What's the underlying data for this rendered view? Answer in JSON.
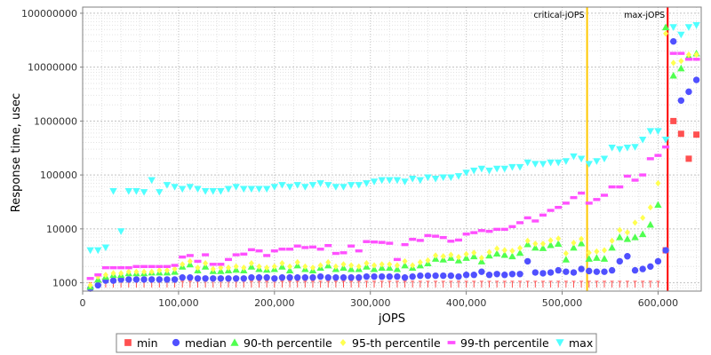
{
  "chart_data": {
    "type": "scatter",
    "title": "",
    "xlabel": "jOPS",
    "ylabel": "Response time, usec",
    "xlim": [
      0,
      645000
    ],
    "ylim": [
      700,
      130000000
    ],
    "yscale": "log",
    "grid": true,
    "legend_position": "bottom",
    "x_ticks": [
      0,
      100000,
      200000,
      300000,
      400000,
      500000,
      600000
    ],
    "x_tick_labels": [
      "0",
      "100,000",
      "200,000",
      "300,000",
      "400,000",
      "500,000",
      "600,000"
    ],
    "y_ticks": [
      1000,
      10000,
      100000,
      1000000,
      10000000,
      100000000
    ],
    "y_tick_labels": [
      "1000",
      "10000",
      "100000",
      "1000000",
      "10000000",
      "100000000"
    ],
    "markers": [
      {
        "name": "critical-jOPS",
        "x": 526000,
        "color": "#ffc800"
      },
      {
        "name": "max-jOPS",
        "x": 610000,
        "color": "#ff0000"
      }
    ],
    "x": [
      8000,
      16000,
      24000,
      32000,
      40000,
      48000,
      56000,
      64000,
      72000,
      80000,
      88000,
      96000,
      104000,
      112000,
      120000,
      128000,
      136000,
      144000,
      152000,
      160000,
      168000,
      176000,
      184000,
      192000,
      200000,
      208000,
      216000,
      224000,
      232000,
      240000,
      248000,
      256000,
      264000,
      272000,
      280000,
      288000,
      296000,
      304000,
      312000,
      320000,
      328000,
      336000,
      344000,
      352000,
      360000,
      368000,
      376000,
      384000,
      392000,
      400000,
      408000,
      416000,
      424000,
      432000,
      440000,
      448000,
      456000,
      464000,
      472000,
      480000,
      488000,
      496000,
      504000,
      512000,
      520000,
      528000,
      536000,
      544000,
      552000,
      560000,
      568000,
      576000,
      584000,
      592000,
      600000,
      608000,
      616000,
      624000,
      632000,
      640000
    ],
    "series": [
      {
        "name": "min",
        "color": "#ff5050",
        "marker": "square",
        "values": [
          900,
          950,
          950,
          950,
          950,
          950,
          950,
          950,
          950,
          950,
          950,
          950,
          950,
          950,
          950,
          950,
          950,
          950,
          950,
          950,
          950,
          950,
          950,
          950,
          950,
          950,
          950,
          950,
          950,
          950,
          950,
          950,
          950,
          950,
          950,
          950,
          950,
          950,
          950,
          950,
          950,
          950,
          950,
          950,
          950,
          950,
          950,
          950,
          950,
          950,
          950,
          950,
          950,
          950,
          950,
          950,
          950,
          950,
          950,
          950,
          950,
          950,
          950,
          950,
          950,
          950,
          950,
          950,
          950,
          950,
          950,
          950,
          950,
          950,
          950,
          4000,
          1000000,
          580000,
          200000,
          560000
        ]
      },
      {
        "name": "median",
        "color": "#5050ff",
        "marker": "circle",
        "values": [
          780,
          900,
          1100,
          1100,
          1150,
          1150,
          1150,
          1150,
          1150,
          1150,
          1150,
          1150,
          1250,
          1250,
          1200,
          1200,
          1200,
          1200,
          1200,
          1200,
          1200,
          1250,
          1250,
          1250,
          1200,
          1250,
          1250,
          1250,
          1250,
          1250,
          1300,
          1250,
          1250,
          1250,
          1250,
          1250,
          1300,
          1300,
          1300,
          1300,
          1300,
          1250,
          1300,
          1350,
          1350,
          1350,
          1350,
          1350,
          1300,
          1400,
          1400,
          1600,
          1400,
          1450,
          1400,
          1450,
          1450,
          2500,
          1550,
          1500,
          1550,
          1700,
          1600,
          1550,
          1800,
          1650,
          1600,
          1600,
          1700,
          2500,
          3100,
          1700,
          1800,
          2000,
          2500,
          4000,
          30000000,
          2400000,
          3500000,
          5800000
        ]
      },
      {
        "name": "90-th percentile",
        "color": "#50ff50",
        "marker": "triangle",
        "values": [
          850,
          1150,
          1300,
          1400,
          1400,
          1500,
          1500,
          1500,
          1550,
          1550,
          1550,
          1600,
          2000,
          2200,
          1700,
          2000,
          1650,
          1650,
          1700,
          1750,
          1700,
          2000,
          1800,
          1750,
          1800,
          2000,
          1700,
          2100,
          1800,
          1700,
          1900,
          2100,
          1800,
          1900,
          1800,
          1800,
          2000,
          1800,
          1900,
          1900,
          1800,
          2100,
          1900,
          2100,
          2300,
          2800,
          2700,
          2900,
          2600,
          2900,
          3100,
          2500,
          3200,
          3500,
          3300,
          3100,
          3600,
          5200,
          4500,
          4400,
          5000,
          5300,
          2700,
          4500,
          5400,
          2800,
          2900,
          2800,
          4500,
          7000,
          6500,
          7000,
          8000,
          12000,
          28000,
          55000000,
          7000000,
          9500000,
          16000000,
          18000000
        ]
      },
      {
        "name": "95-th percentile",
        "color": "#ffff50",
        "marker": "diamond",
        "values": [
          900,
          1300,
          1400,
          1500,
          1500,
          1600,
          1600,
          1600,
          1600,
          1700,
          1700,
          1800,
          2200,
          2500,
          1900,
          2300,
          1800,
          1900,
          1900,
          2000,
          1900,
          2300,
          2000,
          1900,
          2000,
          2300,
          2000,
          2400,
          2000,
          1900,
          2100,
          2400,
          2000,
          2200,
          2100,
          2000,
          2300,
          2100,
          2200,
          2200,
          2100,
          2500,
          2100,
          2400,
          2600,
          3200,
          3100,
          3300,
          3000,
          3400,
          3600,
          2900,
          3700,
          4300,
          4000,
          3900,
          4400,
          6000,
          5300,
          5300,
          6100,
          6600,
          3500,
          5500,
          6500,
          3600,
          3800,
          4000,
          6000,
          9500,
          8600,
          13000,
          16000,
          25000,
          70000,
          42000000,
          12000000,
          13000000,
          17000000,
          17000000
        ]
      },
      {
        "name": "99-th percentile",
        "color": "#ff50ff",
        "marker": "bar",
        "values": [
          1200,
          1400,
          1900,
          1900,
          1900,
          1900,
          2000,
          2000,
          2000,
          2000,
          2000,
          2100,
          3000,
          3200,
          2500,
          3300,
          2200,
          2200,
          2700,
          3300,
          3400,
          4100,
          3900,
          3200,
          3900,
          4200,
          4200,
          4800,
          4500,
          4600,
          4200,
          4900,
          3500,
          3600,
          4800,
          3900,
          5800,
          5700,
          5600,
          5400,
          2700,
          5100,
          6400,
          6100,
          7500,
          7300,
          6900,
          5900,
          6200,
          8000,
          8500,
          9300,
          9000,
          9800,
          9800,
          11000,
          13000,
          16000,
          14000,
          18000,
          22000,
          25000,
          30000,
          38000,
          46000,
          30000,
          35000,
          42000,
          60000,
          60000,
          95000,
          80000,
          100000,
          200000,
          230000,
          330000,
          18000000,
          18000000,
          14000000,
          14000000
        ]
      },
      {
        "name": "max",
        "color": "#50ffff",
        "marker": "triangle-down",
        "values": [
          4000,
          4000,
          4500,
          50000,
          9000,
          50000,
          50000,
          48000,
          80000,
          48000,
          65000,
          60000,
          55000,
          60000,
          55000,
          50000,
          50000,
          50000,
          55000,
          60000,
          55000,
          55000,
          55000,
          55000,
          60000,
          65000,
          60000,
          65000,
          60000,
          65000,
          70000,
          65000,
          60000,
          60000,
          65000,
          65000,
          70000,
          75000,
          80000,
          80000,
          80000,
          75000,
          85000,
          80000,
          90000,
          85000,
          90000,
          90000,
          95000,
          110000,
          120000,
          130000,
          120000,
          130000,
          130000,
          140000,
          140000,
          170000,
          160000,
          160000,
          170000,
          170000,
          180000,
          220000,
          200000,
          160000,
          180000,
          200000,
          320000,
          300000,
          320000,
          330000,
          450000,
          650000,
          650000,
          450000,
          55000000,
          40000000,
          55000000,
          60000000
        ]
      }
    ]
  }
}
